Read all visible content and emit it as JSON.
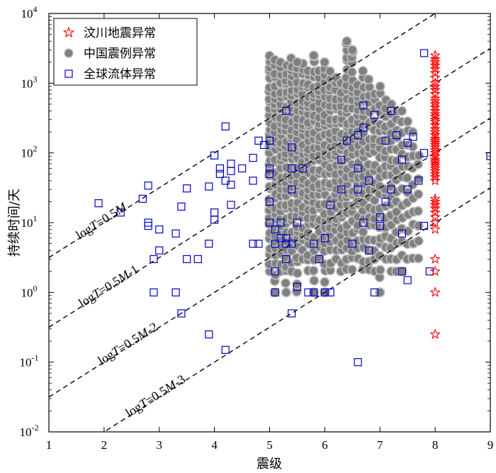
{
  "chart_data": {
    "type": "scatter",
    "xlabel": "震级",
    "ylabel": "持续时间/天",
    "xlim": [
      1,
      9
    ],
    "ylim": [
      0.01,
      10000
    ],
    "yscale": "log",
    "x_ticks": [
      "1",
      "2",
      "3",
      "4",
      "5",
      "6",
      "7",
      "8",
      "9"
    ],
    "y_ticks": [
      {
        "base": "10",
        "exp": "-2"
      },
      {
        "base": "10",
        "exp": "-1"
      },
      {
        "base": "10",
        "exp": "0"
      },
      {
        "base": "10",
        "exp": "1"
      },
      {
        "base": "10",
        "exp": "2"
      },
      {
        "base": "10",
        "exp": "3"
      },
      {
        "base": "10",
        "exp": "4"
      }
    ],
    "legend_position": "top-left",
    "grid": false,
    "series": [
      {
        "name": "汶川地震异常",
        "marker": "star",
        "color": "#ff0000",
        "points": [
          [
            8,
            0.25
          ],
          [
            8,
            1
          ],
          [
            8,
            2
          ],
          [
            8,
            3
          ],
          [
            8,
            8
          ],
          [
            8,
            10
          ],
          [
            8,
            12
          ],
          [
            8,
            14
          ],
          [
            8,
            16
          ],
          [
            8,
            18
          ],
          [
            8,
            20
          ],
          [
            8,
            22
          ],
          [
            8,
            40
          ],
          [
            8,
            45
          ],
          [
            8,
            50
          ],
          [
            8,
            55
          ],
          [
            8,
            60
          ],
          [
            8,
            65
          ],
          [
            8,
            70
          ],
          [
            8,
            75
          ],
          [
            8,
            80
          ],
          [
            8,
            90
          ],
          [
            8,
            100
          ],
          [
            8,
            110
          ],
          [
            8,
            120
          ],
          [
            8,
            130
          ],
          [
            8,
            140
          ],
          [
            8,
            150
          ],
          [
            8,
            160
          ],
          [
            8,
            180
          ],
          [
            8,
            200
          ],
          [
            8,
            220
          ],
          [
            8,
            250
          ],
          [
            8,
            280
          ],
          [
            8,
            300
          ],
          [
            8,
            330
          ],
          [
            8,
            360
          ],
          [
            8,
            400
          ],
          [
            8,
            450
          ],
          [
            8,
            500
          ],
          [
            8,
            550
          ],
          [
            8,
            600
          ],
          [
            8,
            700
          ],
          [
            8,
            800
          ],
          [
            8,
            900
          ],
          [
            8,
            1000
          ],
          [
            8,
            1200
          ],
          [
            8,
            1400
          ],
          [
            8,
            1600
          ],
          [
            8,
            1800
          ],
          [
            8,
            2000
          ],
          [
            8,
            2200
          ],
          [
            8,
            2500
          ]
        ]
      },
      {
        "name": "中国震例异常",
        "marker": "circle",
        "color": "#808080",
        "columns": [
          {
            "x": 5.0,
            "ymin": 2,
            "ymax": 2500,
            "n": 34
          },
          {
            "x": 5.1,
            "ymin": 1,
            "ymax": 2200,
            "n": 34
          },
          {
            "x": 5.2,
            "ymin": 2,
            "ymax": 2000,
            "n": 32
          },
          {
            "x": 5.3,
            "ymin": 1,
            "ymax": 1800,
            "n": 32
          },
          {
            "x": 5.4,
            "ymin": 2,
            "ymax": 2300,
            "n": 32
          },
          {
            "x": 5.5,
            "ymin": 1,
            "ymax": 2000,
            "n": 32
          },
          {
            "x": 5.6,
            "ymin": 3,
            "ymax": 2000,
            "n": 30
          },
          {
            "x": 5.7,
            "ymin": 2,
            "ymax": 1500,
            "n": 30
          },
          {
            "x": 5.8,
            "ymin": 1,
            "ymax": 2500,
            "n": 30
          },
          {
            "x": 5.9,
            "ymin": 3,
            "ymax": 1500,
            "n": 28
          },
          {
            "x": 6.0,
            "ymin": 1,
            "ymax": 2000,
            "n": 30
          },
          {
            "x": 6.1,
            "ymin": 2,
            "ymax": 1500,
            "n": 28
          },
          {
            "x": 6.2,
            "ymin": 3,
            "ymax": 1200,
            "n": 26
          },
          {
            "x": 6.3,
            "ymin": 2,
            "ymax": 1000,
            "n": 26
          },
          {
            "x": 6.4,
            "ymin": 2,
            "ymax": 4000,
            "n": 30
          },
          {
            "x": 6.5,
            "ymin": 2,
            "ymax": 3000,
            "n": 28
          },
          {
            "x": 6.6,
            "ymin": 3,
            "ymax": 1000,
            "n": 24
          },
          {
            "x": 6.7,
            "ymin": 2,
            "ymax": 1500,
            "n": 24
          },
          {
            "x": 6.8,
            "ymin": 2,
            "ymax": 1200,
            "n": 22
          },
          {
            "x": 6.9,
            "ymin": 2,
            "ymax": 700,
            "n": 20
          },
          {
            "x": 7.0,
            "ymin": 1,
            "ymax": 900,
            "n": 22
          },
          {
            "x": 7.1,
            "ymin": 3,
            "ymax": 600,
            "n": 18
          },
          {
            "x": 7.2,
            "ymin": 2,
            "ymax": 500,
            "n": 18
          },
          {
            "x": 7.3,
            "ymin": 2,
            "ymax": 400,
            "n": 16
          },
          {
            "x": 7.4,
            "ymin": 2,
            "ymax": 400,
            "n": 14
          },
          {
            "x": 7.5,
            "ymin": 3,
            "ymax": 300,
            "n": 12
          },
          {
            "x": 7.6,
            "ymin": 3,
            "ymax": 200,
            "n": 10
          },
          {
            "x": 7.7,
            "ymin": 3,
            "ymax": 100,
            "n": 8
          }
        ],
        "points": [
          [
            5.5,
            2000
          ],
          [
            5.8,
            2500
          ],
          [
            6.4,
            4000
          ],
          [
            6.5,
            3000
          ],
          [
            6.0,
            1
          ],
          [
            7.0,
            1
          ],
          [
            5.3,
            1
          ]
        ]
      },
      {
        "name": "全球流体异常",
        "marker": "square",
        "color": "#0000cc",
        "points": [
          [
            1.9,
            19
          ],
          [
            2.3,
            14
          ],
          [
            2.7,
            22
          ],
          [
            2.8,
            34
          ],
          [
            2.8,
            10
          ],
          [
            2.8,
            9
          ],
          [
            2.9,
            3
          ],
          [
            2.9,
            1
          ],
          [
            3.0,
            4
          ],
          [
            3.0,
            8
          ],
          [
            3.3,
            7
          ],
          [
            3.3,
            1
          ],
          [
            3.4,
            17
          ],
          [
            3.4,
            0.5
          ],
          [
            3.5,
            31
          ],
          [
            3.5,
            3
          ],
          [
            3.7,
            3
          ],
          [
            3.9,
            0.25
          ],
          [
            3.9,
            33
          ],
          [
            3.9,
            5
          ],
          [
            4.0,
            92
          ],
          [
            4.0,
            14
          ],
          [
            4.0,
            11
          ],
          [
            4.1,
            60
          ],
          [
            4.1,
            50
          ],
          [
            4.2,
            240
          ],
          [
            4.2,
            40
          ],
          [
            4.2,
            0.15
          ],
          [
            4.3,
            70
          ],
          [
            4.3,
            55
          ],
          [
            4.3,
            35
          ],
          [
            4.3,
            18
          ],
          [
            4.5,
            60
          ],
          [
            4.7,
            85
          ],
          [
            4.7,
            40
          ],
          [
            4.7,
            5
          ],
          [
            4.8,
            150
          ],
          [
            4.8,
            5
          ],
          [
            4.9,
            130
          ],
          [
            5.0,
            150
          ],
          [
            5.0,
            60
          ],
          [
            5.0,
            50
          ],
          [
            5.0,
            20
          ],
          [
            5.0,
            10
          ],
          [
            5.1,
            8
          ],
          [
            5.1,
            5
          ],
          [
            5.1,
            2
          ],
          [
            5.1,
            1
          ],
          [
            5.2,
            10
          ],
          [
            5.2,
            6
          ],
          [
            5.3,
            400
          ],
          [
            5.3,
            6
          ],
          [
            5.3,
            5
          ],
          [
            5.3,
            3
          ],
          [
            5.4,
            120
          ],
          [
            5.4,
            60
          ],
          [
            5.4,
            30
          ],
          [
            5.4,
            5
          ],
          [
            5.4,
            0.5
          ],
          [
            5.5,
            10
          ],
          [
            5.5,
            1.2
          ],
          [
            5.6,
            60
          ],
          [
            5.7,
            1
          ],
          [
            5.8,
            5
          ],
          [
            5.8,
            1
          ],
          [
            5.9,
            3
          ],
          [
            6.0,
            6
          ],
          [
            6.0,
            1
          ],
          [
            6.1,
            18
          ],
          [
            6.1,
            1
          ],
          [
            6.3,
            80
          ],
          [
            6.3,
            30
          ],
          [
            6.4,
            150
          ],
          [
            6.5,
            5
          ],
          [
            6.6,
            60
          ],
          [
            6.6,
            180
          ],
          [
            6.6,
            30
          ],
          [
            6.6,
            0.1
          ],
          [
            6.7,
            480
          ],
          [
            6.7,
            230
          ],
          [
            6.7,
            10
          ],
          [
            6.8,
            40
          ],
          [
            6.8,
            4
          ],
          [
            6.9,
            350
          ],
          [
            6.9,
            1
          ],
          [
            7.0,
            12
          ],
          [
            7.0,
            9
          ],
          [
            7.1,
            150
          ],
          [
            7.1,
            20
          ],
          [
            7.2,
            400
          ],
          [
            7.2,
            30
          ],
          [
            7.3,
            180
          ],
          [
            7.4,
            80
          ],
          [
            7.4,
            7
          ],
          [
            7.4,
            2
          ],
          [
            7.5,
            140
          ],
          [
            7.5,
            30
          ],
          [
            7.5,
            1.5
          ],
          [
            7.6,
            170
          ],
          [
            7.7,
            40
          ],
          [
            7.8,
            2700
          ],
          [
            7.8,
            100
          ],
          [
            7.8,
            9
          ],
          [
            7.9,
            2
          ],
          [
            9.0,
            90
          ]
        ]
      }
    ],
    "reference_lines": [
      {
        "label_prefix": "log",
        "label_var": "T",
        "label_rest": "=0.5",
        "label_m": "M",
        "label_suffix": "",
        "offset": 0
      },
      {
        "label_prefix": "log",
        "label_var": "T",
        "label_rest": "=0.5",
        "label_m": "M",
        "label_suffix": "-1",
        "offset": -1
      },
      {
        "label_prefix": "log",
        "label_var": "T",
        "label_rest": "=0.5",
        "label_m": "M",
        "label_suffix": "-2",
        "offset": -2
      },
      {
        "label_prefix": "log",
        "label_var": "T",
        "label_rest": "=0.5",
        "label_m": "M",
        "label_suffix": "-3",
        "offset": -3
      }
    ]
  }
}
